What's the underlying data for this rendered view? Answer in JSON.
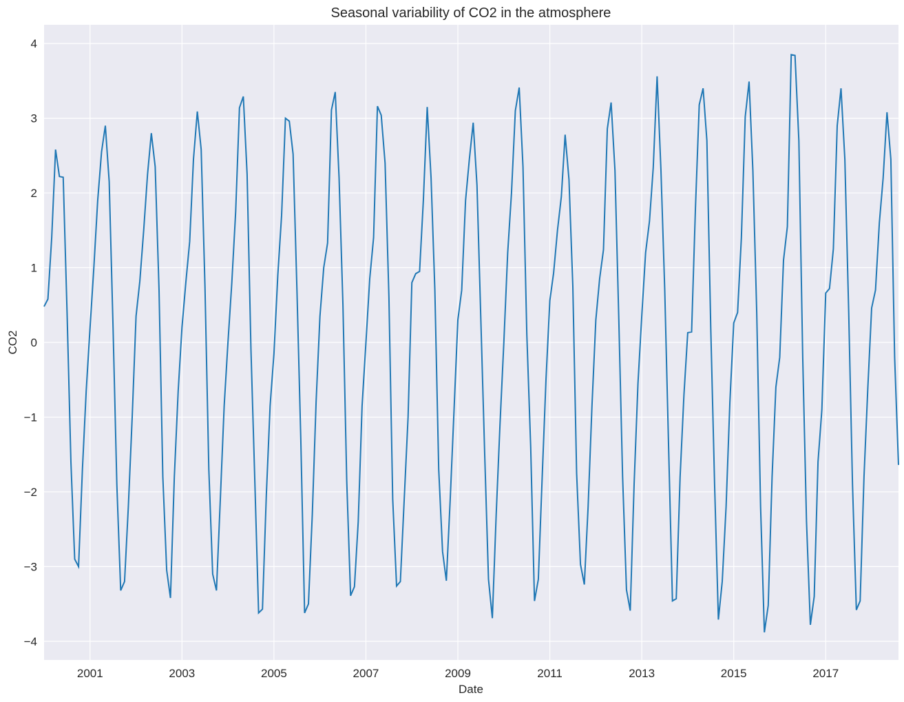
{
  "chart_data": {
    "type": "line",
    "title": "Seasonal variability of CO2 in the atmosphere",
    "xlabel": "Date",
    "ylabel": "CO2",
    "xlim": [
      "2000-01",
      "2018-08"
    ],
    "ylim": [
      -4.25,
      4.25
    ],
    "grid": true,
    "colors": {
      "background": "#eaeaf2",
      "grid": "#ffffff",
      "line": "#1f77b4"
    },
    "x_ticks": [
      "2001",
      "2003",
      "2005",
      "2007",
      "2009",
      "2011",
      "2013",
      "2015",
      "2017"
    ],
    "y_ticks": [
      "4",
      "3",
      "2",
      "1",
      "0",
      "−1",
      "−2",
      "−3",
      "−4"
    ],
    "series": [
      {
        "x": [
          "2000-01",
          "2000-02",
          "2000-03",
          "2000-04",
          "2000-05",
          "2000-06",
          "2000-07",
          "2000-08",
          "2000-09",
          "2000-10",
          "2000-11",
          "2000-12",
          "2001-01",
          "2001-02",
          "2001-03",
          "2001-04",
          "2001-05",
          "2001-06",
          "2001-07",
          "2001-08",
          "2001-09",
          "2001-10",
          "2001-11",
          "2001-12",
          "2002-01",
          "2002-02",
          "2002-03",
          "2002-04",
          "2002-05",
          "2002-06",
          "2002-07",
          "2002-08",
          "2002-09",
          "2002-10",
          "2002-11",
          "2002-12",
          "2003-01",
          "2003-02",
          "2003-03",
          "2003-04",
          "2003-05",
          "2003-06",
          "2003-07",
          "2003-08",
          "2003-09",
          "2003-10",
          "2003-11",
          "2003-12",
          "2004-01",
          "2004-02",
          "2004-03",
          "2004-04",
          "2004-05",
          "2004-06",
          "2004-07",
          "2004-08",
          "2004-09",
          "2004-10",
          "2004-11",
          "2004-12",
          "2005-01",
          "2005-02",
          "2005-03",
          "2005-04",
          "2005-05",
          "2005-06",
          "2005-07",
          "2005-08",
          "2005-09",
          "2005-10",
          "2005-11",
          "2005-12",
          "2006-01",
          "2006-02",
          "2006-03",
          "2006-04",
          "2006-05",
          "2006-06",
          "2006-07",
          "2006-08",
          "2006-09",
          "2006-10",
          "2006-11",
          "2006-12",
          "2007-01",
          "2007-02",
          "2007-03",
          "2007-04",
          "2007-05",
          "2007-06",
          "2007-07",
          "2007-08",
          "2007-09",
          "2007-10",
          "2007-11",
          "2007-12",
          "2008-01",
          "2008-02",
          "2008-03",
          "2008-04",
          "2008-05",
          "2008-06",
          "2008-07",
          "2008-08",
          "2008-09",
          "2008-10",
          "2008-11",
          "2008-12",
          "2009-01",
          "2009-02",
          "2009-03",
          "2009-04",
          "2009-05",
          "2009-06",
          "2009-07",
          "2009-08",
          "2009-09",
          "2009-10",
          "2009-11",
          "2009-12",
          "2010-01",
          "2010-02",
          "2010-03",
          "2010-04",
          "2010-05",
          "2010-06",
          "2010-07",
          "2010-08",
          "2010-09",
          "2010-10",
          "2010-11",
          "2010-12",
          "2011-01",
          "2011-02",
          "2011-03",
          "2011-04",
          "2011-05",
          "2011-06",
          "2011-07",
          "2011-08",
          "2011-09",
          "2011-10",
          "2011-11",
          "2011-12",
          "2012-01",
          "2012-02",
          "2012-03",
          "2012-04",
          "2012-05",
          "2012-06",
          "2012-07",
          "2012-08",
          "2012-09",
          "2012-10",
          "2012-11",
          "2012-12",
          "2013-01",
          "2013-02",
          "2013-03",
          "2013-04",
          "2013-05",
          "2013-06",
          "2013-07",
          "2013-08",
          "2013-09",
          "2013-10",
          "2013-11",
          "2013-12",
          "2014-01",
          "2014-02",
          "2014-03",
          "2014-04",
          "2014-05",
          "2014-06",
          "2014-07",
          "2014-08",
          "2014-09",
          "2014-10",
          "2014-11",
          "2014-12",
          "2015-01",
          "2015-02",
          "2015-03",
          "2015-04",
          "2015-05",
          "2015-06",
          "2015-07",
          "2015-08",
          "2015-09",
          "2015-10",
          "2015-11",
          "2015-12",
          "2016-01",
          "2016-02",
          "2016-03",
          "2016-04",
          "2016-05",
          "2016-06",
          "2016-07",
          "2016-08",
          "2016-09",
          "2016-10",
          "2016-11",
          "2016-12",
          "2017-01",
          "2017-02",
          "2017-03",
          "2017-04",
          "2017-05",
          "2017-06",
          "2017-07",
          "2017-08",
          "2017-09",
          "2017-10",
          "2017-11",
          "2017-12",
          "2018-01",
          "2018-02",
          "2018-03",
          "2018-04",
          "2018-05",
          "2018-06",
          "2018-07",
          "2018-08"
        ],
        "values": [
          0.48,
          0.58,
          1.4,
          2.58,
          2.22,
          2.21,
          0.4,
          -1.6,
          -2.9,
          -3.0,
          -1.7,
          -0.65,
          0.2,
          1.0,
          1.9,
          2.55,
          2.9,
          2.15,
          0.2,
          -1.9,
          -3.32,
          -3.2,
          -2.2,
          -1.0,
          0.35,
          0.82,
          1.5,
          2.25,
          2.8,
          2.35,
          0.7,
          -1.8,
          -3.05,
          -3.42,
          -1.8,
          -0.65,
          0.2,
          0.8,
          1.35,
          2.45,
          3.09,
          2.58,
          0.75,
          -1.7,
          -3.1,
          -3.32,
          -2.1,
          -0.85,
          0.0,
          0.8,
          1.75,
          3.14,
          3.29,
          2.25,
          -0.1,
          -1.85,
          -3.62,
          -3.57,
          -2.05,
          -0.85,
          -0.15,
          0.9,
          1.7,
          3.0,
          2.96,
          2.52,
          0.7,
          -1.3,
          -3.62,
          -3.5,
          -2.3,
          -0.8,
          0.35,
          1.0,
          1.33,
          3.11,
          3.35,
          2.2,
          0.5,
          -1.85,
          -3.39,
          -3.27,
          -2.4,
          -0.85,
          0.0,
          0.85,
          1.4,
          3.16,
          3.04,
          2.4,
          0.6,
          -2.1,
          -3.26,
          -3.2,
          -2.1,
          -1.0,
          0.8,
          0.92,
          0.95,
          1.9,
          3.15,
          2.2,
          0.7,
          -1.7,
          -2.8,
          -3.19,
          -2.1,
          -0.9,
          0.3,
          0.7,
          1.9,
          2.45,
          2.94,
          2.1,
          0.3,
          -1.5,
          -3.17,
          -3.69,
          -2.3,
          -1.1,
          0.0,
          1.2,
          2.0,
          3.1,
          3.41,
          2.35,
          0.1,
          -1.4,
          -3.46,
          -3.17,
          -1.8,
          -0.5,
          0.56,
          0.93,
          1.5,
          1.95,
          2.78,
          2.18,
          0.75,
          -1.75,
          -2.97,
          -3.24,
          -2.2,
          -0.85,
          0.3,
          0.85,
          1.24,
          2.86,
          3.21,
          2.3,
          0.3,
          -1.8,
          -3.31,
          -3.59,
          -1.9,
          -0.55,
          0.35,
          1.2,
          1.62,
          2.34,
          3.56,
          2.3,
          0.7,
          -1.4,
          -3.46,
          -3.43,
          -1.8,
          -0.7,
          0.13,
          0.14,
          1.8,
          3.18,
          3.4,
          2.7,
          0.2,
          -1.9,
          -3.71,
          -3.2,
          -2.2,
          -0.8,
          0.26,
          0.4,
          1.4,
          3.02,
          3.49,
          2.3,
          0.4,
          -2.2,
          -3.88,
          -3.52,
          -1.8,
          -0.6,
          -0.2,
          1.1,
          1.55,
          3.85,
          3.84,
          2.7,
          -0.2,
          -2.4,
          -3.78,
          -3.4,
          -1.6,
          -0.9,
          0.66,
          0.72,
          1.25,
          2.9,
          3.4,
          2.45,
          0.4,
          -1.9,
          -3.58,
          -3.46,
          -1.8,
          -0.6,
          0.46,
          0.7,
          1.6,
          2.2,
          3.08,
          2.45,
          -0.2,
          -1.64
        ]
      }
    ]
  }
}
